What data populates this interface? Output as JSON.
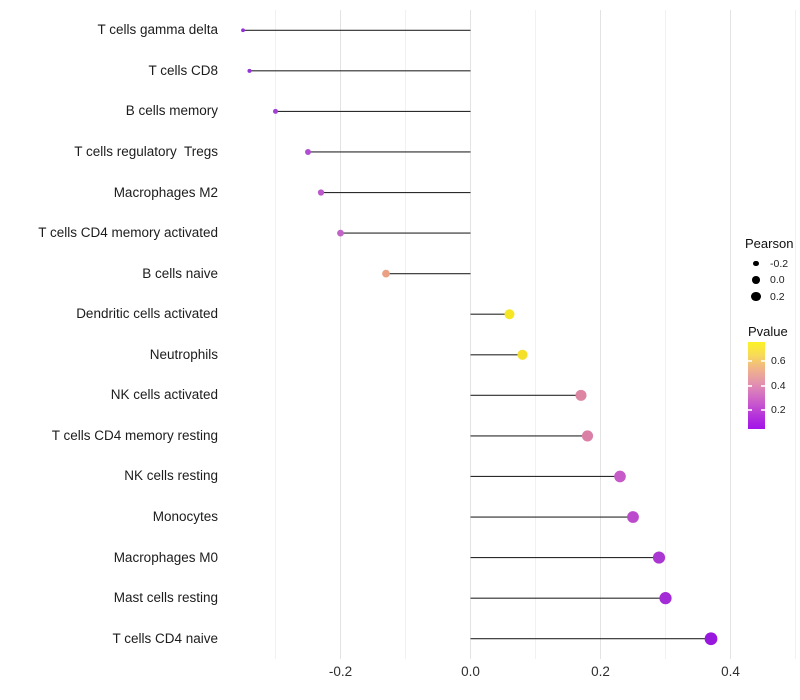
{
  "chart_data": {
    "type": "lollipop",
    "title": "",
    "xlabel": "",
    "ylabel": "",
    "categories": [
      "T cells gamma delta",
      "T cells CD8",
      "B cells memory",
      "T cells regulatory  Tregs",
      "Macrophages M2",
      "T cells CD4 memory activated",
      "B cells naive",
      "Dendritic cells activated",
      "Neutrophils",
      "NK cells activated",
      "T cells CD4 memory resting",
      "NK cells resting",
      "Monocytes",
      "Macrophages M0",
      "Mast cells resting",
      "T cells CD4 naive"
    ],
    "series": [
      {
        "name": "Pearson",
        "values": [
          -0.35,
          -0.34,
          -0.3,
          -0.25,
          -0.23,
          -0.2,
          -0.13,
          0.06,
          0.08,
          0.17,
          0.18,
          0.23,
          0.25,
          0.29,
          0.3,
          0.37
        ]
      },
      {
        "name": "Pvalue",
        "values": [
          0.1,
          0.11,
          0.15,
          0.19,
          0.24,
          0.27,
          0.47,
          0.7,
          0.66,
          0.4,
          0.38,
          0.22,
          0.19,
          0.13,
          0.1,
          0.05
        ]
      }
    ],
    "point_colors": [
      "#9331D8",
      "#9433D7",
      "#A140D3",
      "#AF4ED0",
      "#BB59CB",
      "#C263C7",
      "#EBA083",
      "#F7E623",
      "#F4E02C",
      "#DC86A4",
      "#DA80A7",
      "#C65AC8",
      "#BC4ACD",
      "#AB37D3",
      "#A42CD6",
      "#9918DD"
    ],
    "x_ticks": [
      -0.2,
      0.0,
      0.2,
      0.4
    ],
    "x_tick_labels": [
      "-0.2",
      "0.0",
      "0.2",
      "0.4"
    ],
    "grid_major_at": [
      -0.2,
      0.0,
      0.2,
      0.4
    ],
    "grid_minor_at": [
      -0.3,
      -0.1,
      0.1,
      0.3,
      0.5
    ],
    "xlim": [
      -0.375,
      0.503
    ],
    "grid": "vertical-only",
    "legend_position": "right-inside",
    "size_domain": [
      -0.35,
      0.37
    ]
  },
  "legend": {
    "pearson": {
      "title": "Pearson",
      "items": [
        {
          "label": "-0.2",
          "value": -0.2
        },
        {
          "label": "0.0",
          "value": 0.0
        },
        {
          "label": "0.2",
          "value": 0.2
        }
      ]
    },
    "pvalue": {
      "title": "Pvalue",
      "ticks": [
        {
          "label": "0.6",
          "value": 0.6
        },
        {
          "label": "0.4",
          "value": 0.4
        },
        {
          "label": "0.2",
          "value": 0.2
        }
      ],
      "bar_top_value": 0.758,
      "bar_bottom_value": 0.042,
      "gradient_stops": [
        {
          "o": 0.0,
          "c": "#FBF224"
        },
        {
          "o": 0.14,
          "c": "#F8DC55"
        },
        {
          "o": 0.3,
          "c": "#F0B587"
        },
        {
          "o": 0.46,
          "c": "#E495AB"
        },
        {
          "o": 0.6,
          "c": "#D573C1"
        },
        {
          "o": 0.74,
          "c": "#C44FD0"
        },
        {
          "o": 0.87,
          "c": "#B12EDC"
        },
        {
          "o": 1.0,
          "c": "#A313E9"
        }
      ]
    }
  },
  "colors": {
    "background": "#ffffff",
    "stem": "#2b2b2b",
    "grid_major": "#e3e3e3",
    "grid_minor": "#f1f1f1",
    "axis_text": "#2e2e2e",
    "category_text": "#1c1c1c",
    "legend_dot": "#000000"
  }
}
